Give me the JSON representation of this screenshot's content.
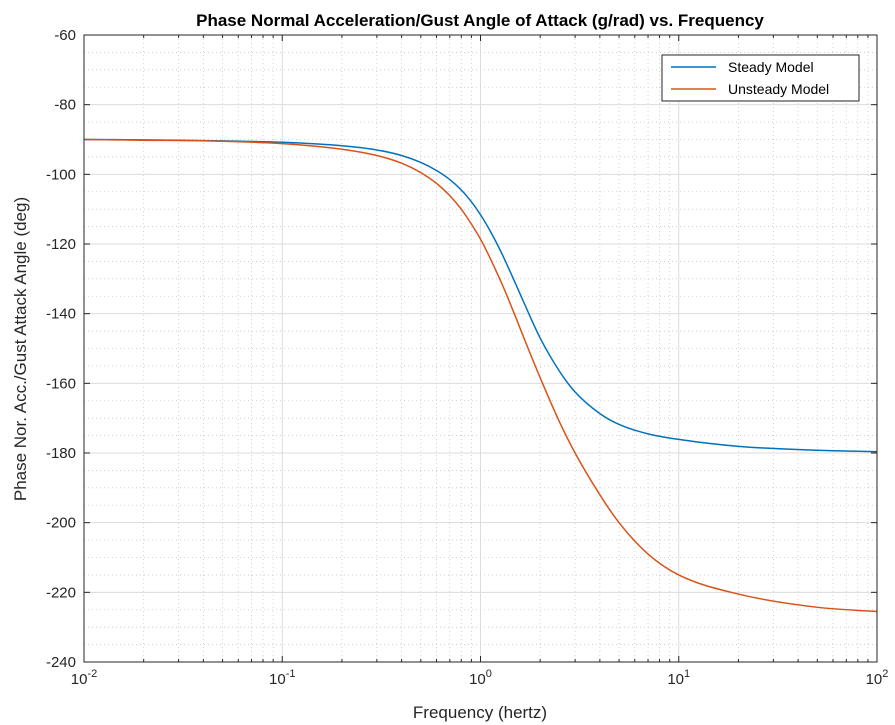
{
  "chart_data": {
    "type": "line",
    "title": "Phase Normal Acceleration/Gust Angle of Attack (g/rad) vs. Frequency",
    "xlabel": "Frequency (hertz)",
    "ylabel": "Phase Nor. Acc./Gust Attack Angle (deg)",
    "x_scale": "log",
    "xlim": [
      0.01,
      100
    ],
    "ylim": [
      -240,
      -60
    ],
    "x_ticks": [
      {
        "base": "10",
        "exp": "-2",
        "value": 0.01
      },
      {
        "base": "10",
        "exp": "-1",
        "value": 0.1
      },
      {
        "base": "10",
        "exp": "0",
        "value": 1
      },
      {
        "base": "10",
        "exp": "1",
        "value": 10
      },
      {
        "base": "10",
        "exp": "2",
        "value": 100
      }
    ],
    "y_ticks": [
      -240,
      -220,
      -200,
      -180,
      -160,
      -140,
      -120,
      -100,
      -80,
      -60
    ],
    "grid": true,
    "minor_grid": true,
    "legend_position": "top-right",
    "series": [
      {
        "name": "Steady Model",
        "color": "#0072BD",
        "x": [
          0.01,
          0.02,
          0.05,
          0.1,
          0.2,
          0.3,
          0.4,
          0.5,
          0.6,
          0.7,
          0.8,
          0.9,
          1.0,
          1.1,
          1.2,
          1.3,
          1.5,
          1.7,
          2.0,
          2.5,
          3.0,
          4.0,
          5.0,
          7.0,
          10,
          20,
          50,
          100
        ],
        "y": [
          -90,
          -90.1,
          -90.4,
          -90.8,
          -91.8,
          -93,
          -94.6,
          -96.6,
          -98.9,
          -101.5,
          -104.5,
          -107.9,
          -111.6,
          -115.5,
          -119.5,
          -123.5,
          -131.3,
          -138.3,
          -147,
          -156.5,
          -162.5,
          -168.7,
          -171.8,
          -174.5,
          -176.1,
          -178.1,
          -179.2,
          -179.6
        ]
      },
      {
        "name": "Unsteady Model",
        "color": "#D95319",
        "x": [
          0.01,
          0.02,
          0.05,
          0.1,
          0.2,
          0.3,
          0.4,
          0.5,
          0.6,
          0.7,
          0.8,
          0.9,
          1.0,
          1.1,
          1.2,
          1.3,
          1.5,
          1.7,
          2.0,
          2.5,
          3.0,
          4.0,
          5.0,
          7.0,
          10,
          20,
          50,
          100
        ],
        "y": [
          -90,
          -90.2,
          -90.5,
          -91.2,
          -92.8,
          -94.6,
          -96.8,
          -99.5,
          -102.6,
          -106.1,
          -110,
          -114.3,
          -118.6,
          -123.2,
          -127.8,
          -132.2,
          -140.8,
          -148.6,
          -158.4,
          -171,
          -180,
          -192,
          -200,
          -209,
          -215,
          -220.5,
          -224.3,
          -225.5
        ]
      }
    ]
  }
}
